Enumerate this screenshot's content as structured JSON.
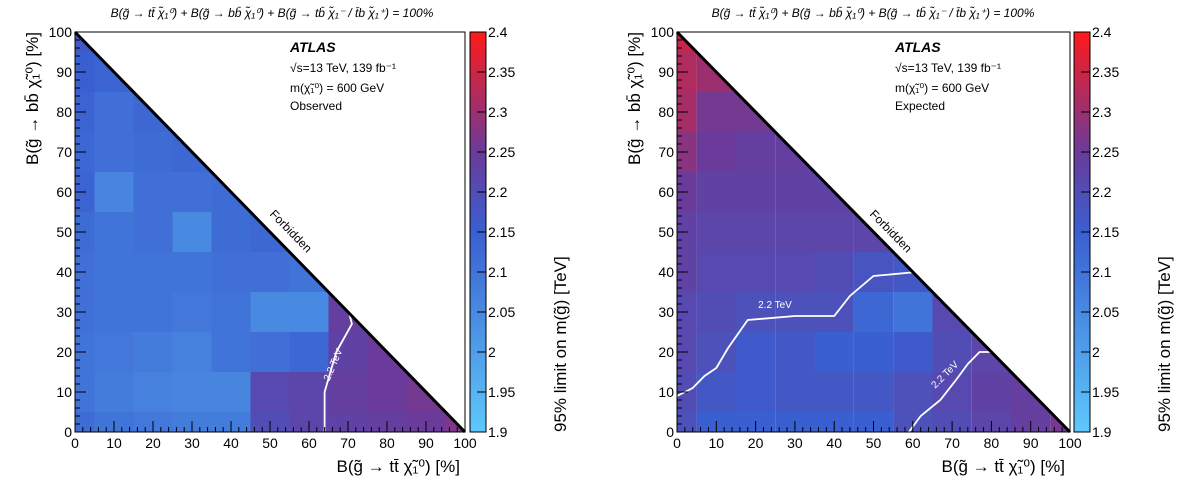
{
  "chart_data": [
    {
      "type": "heatmap",
      "title": "B(g̃ → tt̄ χ̃₁⁰) + B(g̃ → bb̄ χ̃₁⁰) + B(g̃ → tb̄ χ̃₁⁻ / t̄b χ̃₁⁺) = 100%",
      "xlabel": "B(g̃ → tt̄ χ̃₁⁰)   [%]",
      "ylabel": "B(g̃ → bb̄ χ̃₁⁰)   [%]",
      "zlabel": "95% limit on m(g̃) [TeV]",
      "xlim": [
        0,
        100
      ],
      "ylim": [
        0,
        100
      ],
      "zlim": [
        1.9,
        2.4
      ],
      "x_ticks": [
        "0",
        "10",
        "20",
        "30",
        "40",
        "50",
        "60",
        "70",
        "80",
        "90",
        "100"
      ],
      "y_ticks": [
        "0",
        "10",
        "20",
        "30",
        "40",
        "50",
        "60",
        "70",
        "80",
        "90",
        "100"
      ],
      "z_ticks": [
        "1.9",
        "1.95",
        "2",
        "2.05",
        "2.1",
        "2.15",
        "2.2",
        "2.25",
        "2.3",
        "2.35",
        "2.4"
      ],
      "annotations": {
        "experiment": "ATLAS",
        "energy": "√s=13 TeV, 139 fb⁻¹",
        "lsp_mass": "m(χ̃₁⁰) = 600 GeV",
        "kind": "Observed",
        "forbidden": "Forbidden",
        "contour_label": "2.2 TeV"
      },
      "grid": [
        [
          2.12,
          2.1,
          2.09,
          2.08,
          2.08,
          2.2,
          2.22,
          2.23,
          2.24,
          2.25,
          2.27
        ],
        [
          2.1,
          2.08,
          2.07,
          2.06,
          2.06,
          2.21,
          2.22,
          2.24,
          2.25,
          2.26
        ],
        [
          2.1,
          2.09,
          2.08,
          2.07,
          2.1,
          2.11,
          2.13,
          2.23,
          2.25
        ],
        [
          2.11,
          2.1,
          2.1,
          2.09,
          2.1,
          2.05,
          2.05,
          2.24
        ],
        [
          2.11,
          2.1,
          2.1,
          2.1,
          2.11,
          2.11,
          2.1
        ],
        [
          2.12,
          2.1,
          2.11,
          2.05,
          2.12,
          2.13
        ],
        [
          2.14,
          2.06,
          2.11,
          2.11,
          2.12
        ],
        [
          2.13,
          2.11,
          2.12,
          2.13
        ],
        [
          2.14,
          2.11,
          2.13
        ],
        [
          2.15,
          2.14
        ],
        [
          2.17
        ]
      ],
      "contour_2p2": [
        [
          64,
          0
        ],
        [
          64,
          10
        ],
        [
          67,
          20
        ],
        [
          71,
          27
        ],
        [
          70,
          31
        ]
      ]
    },
    {
      "type": "heatmap",
      "title": "B(g̃ → tt̄ χ̃₁⁰) + B(g̃ → bb̄ χ̃₁⁰) + B(g̃ → tb̄ χ̃₁⁻ / t̄b χ̃₁⁺) = 100%",
      "xlabel": "B(g̃ → tt̄ χ̃₁⁰)   [%]",
      "ylabel": "B(g̃ → bb̄ χ̃₁⁰)   [%]",
      "zlabel": "95% limit on m(g̃) [TeV]",
      "xlim": [
        0,
        100
      ],
      "ylim": [
        0,
        100
      ],
      "zlim": [
        1.9,
        2.4
      ],
      "x_ticks": [
        "0",
        "10",
        "20",
        "30",
        "40",
        "50",
        "60",
        "70",
        "80",
        "90",
        "100"
      ],
      "y_ticks": [
        "0",
        "10",
        "20",
        "30",
        "40",
        "50",
        "60",
        "70",
        "80",
        "90",
        "100"
      ],
      "z_ticks": [
        "1.9",
        "1.95",
        "2",
        "2.05",
        "2.1",
        "2.15",
        "2.2",
        "2.25",
        "2.3",
        "2.35",
        "2.4"
      ],
      "annotations": {
        "experiment": "ATLAS",
        "energy": "√s=13 TeV, 139 fb⁻¹",
        "lsp_mass": "m(χ̃₁⁰) = 600 GeV",
        "kind": "Expected",
        "forbidden": "Forbidden",
        "contour_label": "2.2 TeV"
      },
      "grid": [
        [
          2.19,
          2.15,
          2.15,
          2.15,
          2.15,
          2.15,
          2.19,
          2.2,
          2.22,
          2.24,
          2.26
        ],
        [
          2.2,
          2.17,
          2.16,
          2.17,
          2.17,
          2.17,
          2.19,
          2.21,
          2.23,
          2.24
        ],
        [
          2.21,
          2.19,
          2.16,
          2.17,
          2.15,
          2.15,
          2.16,
          2.2,
          2.22
        ],
        [
          2.21,
          2.2,
          2.19,
          2.19,
          2.19,
          2.13,
          2.1,
          2.21
        ],
        [
          2.23,
          2.21,
          2.21,
          2.21,
          2.2,
          2.18,
          2.17
        ],
        [
          2.23,
          2.22,
          2.22,
          2.22,
          2.22,
          2.22
        ],
        [
          2.25,
          2.23,
          2.23,
          2.23,
          2.23
        ],
        [
          2.28,
          2.25,
          2.24,
          2.24
        ],
        [
          2.31,
          2.26,
          2.26
        ],
        [
          2.32,
          2.3
        ],
        [
          2.34
        ]
      ],
      "contour_2p2": [
        [
          0,
          9
        ],
        [
          4,
          11
        ],
        [
          7,
          14
        ],
        [
          10,
          16
        ],
        [
          13,
          21
        ],
        [
          18,
          28
        ],
        [
          30,
          29
        ],
        [
          40,
          29
        ],
        [
          44,
          34
        ],
        [
          50,
          39
        ],
        [
          61,
          40
        ]
      ],
      "contour_2p2_b": [
        [
          59,
          0
        ],
        [
          62,
          4
        ],
        [
          67,
          8
        ],
        [
          71,
          13
        ],
        [
          74,
          17
        ],
        [
          77,
          20
        ],
        [
          81,
          20
        ]
      ]
    }
  ]
}
